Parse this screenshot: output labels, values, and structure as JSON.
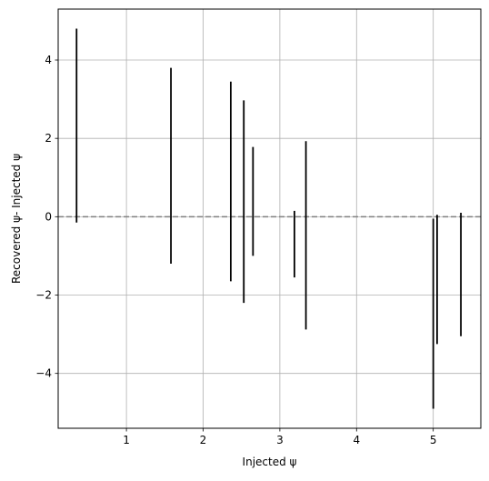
{
  "chart_data": {
    "type": "errorbar",
    "xlabel": "Injected ψ",
    "ylabel": "Recovered ψ- Injected ψ",
    "xlim": [
      0.11,
      5.62
    ],
    "ylim": [
      -5.4,
      5.3
    ],
    "xticks": [
      1,
      2,
      3,
      4,
      5
    ],
    "yticks": [
      -4,
      -2,
      0,
      2,
      4
    ],
    "xtick_labels": [
      "1",
      "2",
      "3",
      "4",
      "5"
    ],
    "ytick_labels": [
      "−4",
      "−2",
      "0",
      "2",
      "4"
    ],
    "grid": true,
    "reference_line": {
      "y": 0,
      "style": "dashed",
      "color": "#808080"
    },
    "series_color": "#000000",
    "points": [
      {
        "x": 0.35,
        "low": -0.15,
        "high": 4.8
      },
      {
        "x": 1.58,
        "low": -1.2,
        "high": 3.8
      },
      {
        "x": 2.36,
        "low": -1.65,
        "high": 3.45
      },
      {
        "x": 2.53,
        "low": -2.2,
        "high": 2.97
      },
      {
        "x": 2.65,
        "low": -1.0,
        "high": 1.78
      },
      {
        "x": 3.19,
        "low": -1.55,
        "high": 0.15
      },
      {
        "x": 3.34,
        "low": -2.88,
        "high": 1.93
      },
      {
        "x": 5.0,
        "low": -4.9,
        "high": -0.05
      },
      {
        "x": 5.05,
        "low": -3.25,
        "high": 0.05
      },
      {
        "x": 5.36,
        "low": -3.05,
        "high": 0.1
      }
    ]
  }
}
